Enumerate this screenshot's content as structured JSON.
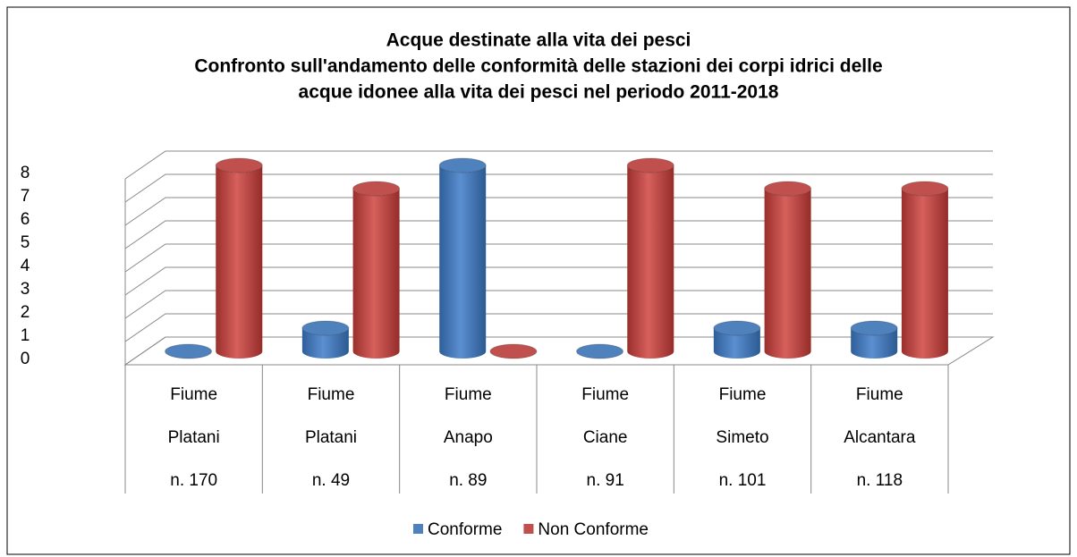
{
  "chart_data": {
    "type": "bar3d",
    "title": [
      "Acque  destinate alla vita dei pesci",
      "Confronto sull'andamento delle conformità delle stazioni dei corpi idrici delle",
      "acque idonee alla vita dei pesci nel periodo 2011-2018"
    ],
    "categories": [
      [
        "Fiume",
        "Platani",
        "n. 170"
      ],
      [
        "Fiume",
        "Platani",
        "n. 49"
      ],
      [
        "Fiume",
        "Anapo",
        "n. 89"
      ],
      [
        "Fiume",
        "Ciane",
        "n. 91"
      ],
      [
        "Fiume",
        "Simeto",
        "n. 101"
      ],
      [
        "Fiume",
        "Alcantara",
        "n. 118"
      ]
    ],
    "series": [
      {
        "name": "Conforme",
        "color": "#4f81bd",
        "values": [
          0,
          1,
          8,
          0,
          1,
          1
        ]
      },
      {
        "name": "Non Conforme",
        "color": "#c0504d",
        "values": [
          8,
          7,
          0,
          8,
          7,
          7
        ]
      }
    ],
    "ylim": [
      0,
      8
    ],
    "yticks": [
      0,
      1,
      2,
      3,
      4,
      5,
      6,
      7,
      8
    ],
    "grid": true,
    "legend": "bottom"
  }
}
